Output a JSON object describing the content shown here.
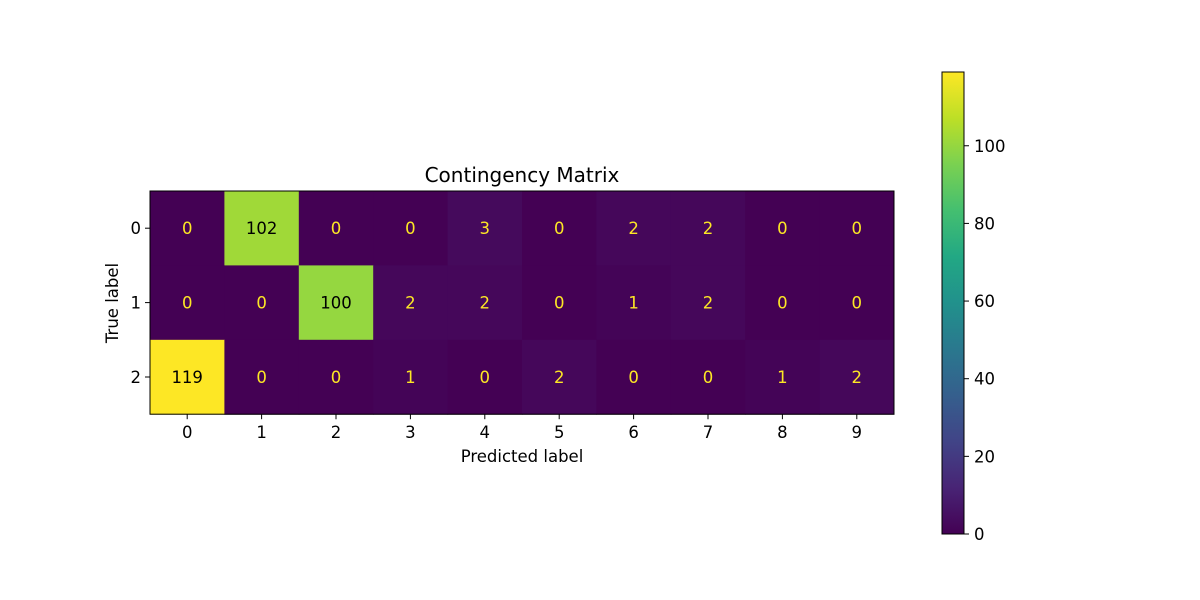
{
  "chart_data": {
    "type": "heatmap",
    "title": "Contingency Matrix",
    "xlabel": "Predicted label",
    "ylabel": "True label",
    "x_categories": [
      "0",
      "1",
      "2",
      "3",
      "4",
      "5",
      "6",
      "7",
      "8",
      "9"
    ],
    "y_categories": [
      "0",
      "1",
      "2"
    ],
    "values": [
      [
        0,
        102,
        0,
        0,
        3,
        0,
        2,
        2,
        0,
        0
      ],
      [
        0,
        0,
        100,
        2,
        2,
        0,
        1,
        2,
        0,
        0
      ],
      [
        119,
        0,
        0,
        1,
        0,
        2,
        0,
        0,
        1,
        2
      ]
    ],
    "colormap": "viridis",
    "color_range": [
      0,
      119
    ],
    "colorbar": {
      "ticks": [
        0,
        20,
        40,
        60,
        80,
        100
      ],
      "tick_labels": [
        "0",
        "20",
        "40",
        "60",
        "80",
        "100"
      ]
    },
    "text_colors": {
      "dark_cells": "#fde725",
      "light_cells": "#000000"
    },
    "grid": false
  }
}
